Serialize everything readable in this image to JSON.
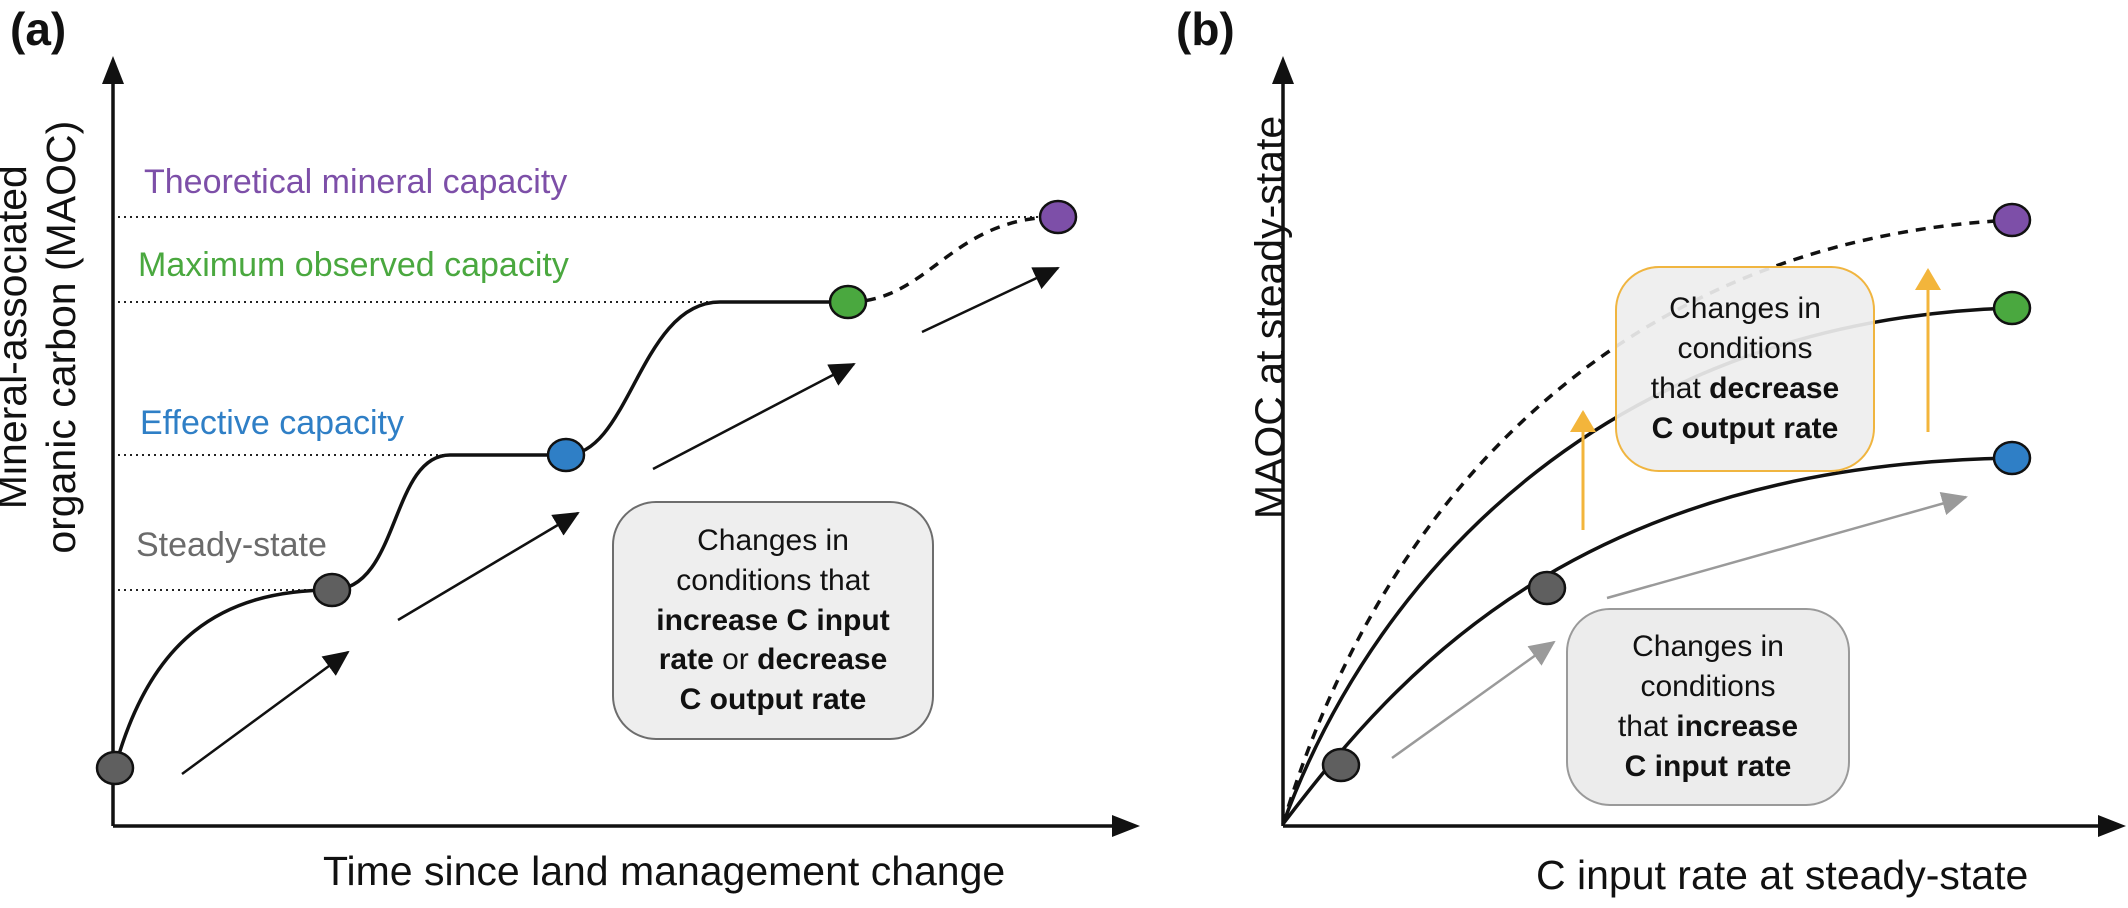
{
  "panel_a": {
    "label": "(a)",
    "y_axis_title_line1": "Mineral-associated",
    "y_axis_title_line2": "organic carbon (MAOC)",
    "x_axis_title": "Time since land management change",
    "levels": {
      "theoretical": "Theoretical mineral capacity",
      "maximum": "Maximum observed capacity",
      "effective": "Effective capacity",
      "steady": "Steady-state"
    },
    "box": {
      "line1": "Changes in",
      "line2": "conditions that",
      "line3_bold": "increase C input",
      "line4_bold": "rate",
      "line4_normal": " or ",
      "line4_bold2": "decrease",
      "line5_bold": "C output rate"
    }
  },
  "panel_b": {
    "label": "(b)",
    "y_axis_title": "MAOC at steady-state",
    "x_axis_title": "C input rate at steady-state",
    "box_output": {
      "line1": "Changes in",
      "line2": "conditions",
      "line3_normal": "that ",
      "line3_bold": "decrease",
      "line4_bold": "C output rate"
    },
    "box_input": {
      "line1": "Changes in",
      "line2": "conditions",
      "line3_normal": "that ",
      "line3_bold": "increase",
      "line4_bold": "C input rate"
    }
  },
  "colors": {
    "theoretical": "#7d4fa8",
    "maximum": "#4aa83f",
    "effective": "#2f7fc6",
    "steady": "#6b6b6b",
    "node_grey": "#5f5f5f",
    "orange": "#f3b53b",
    "arrow_grey": "#9a9a9a"
  }
}
